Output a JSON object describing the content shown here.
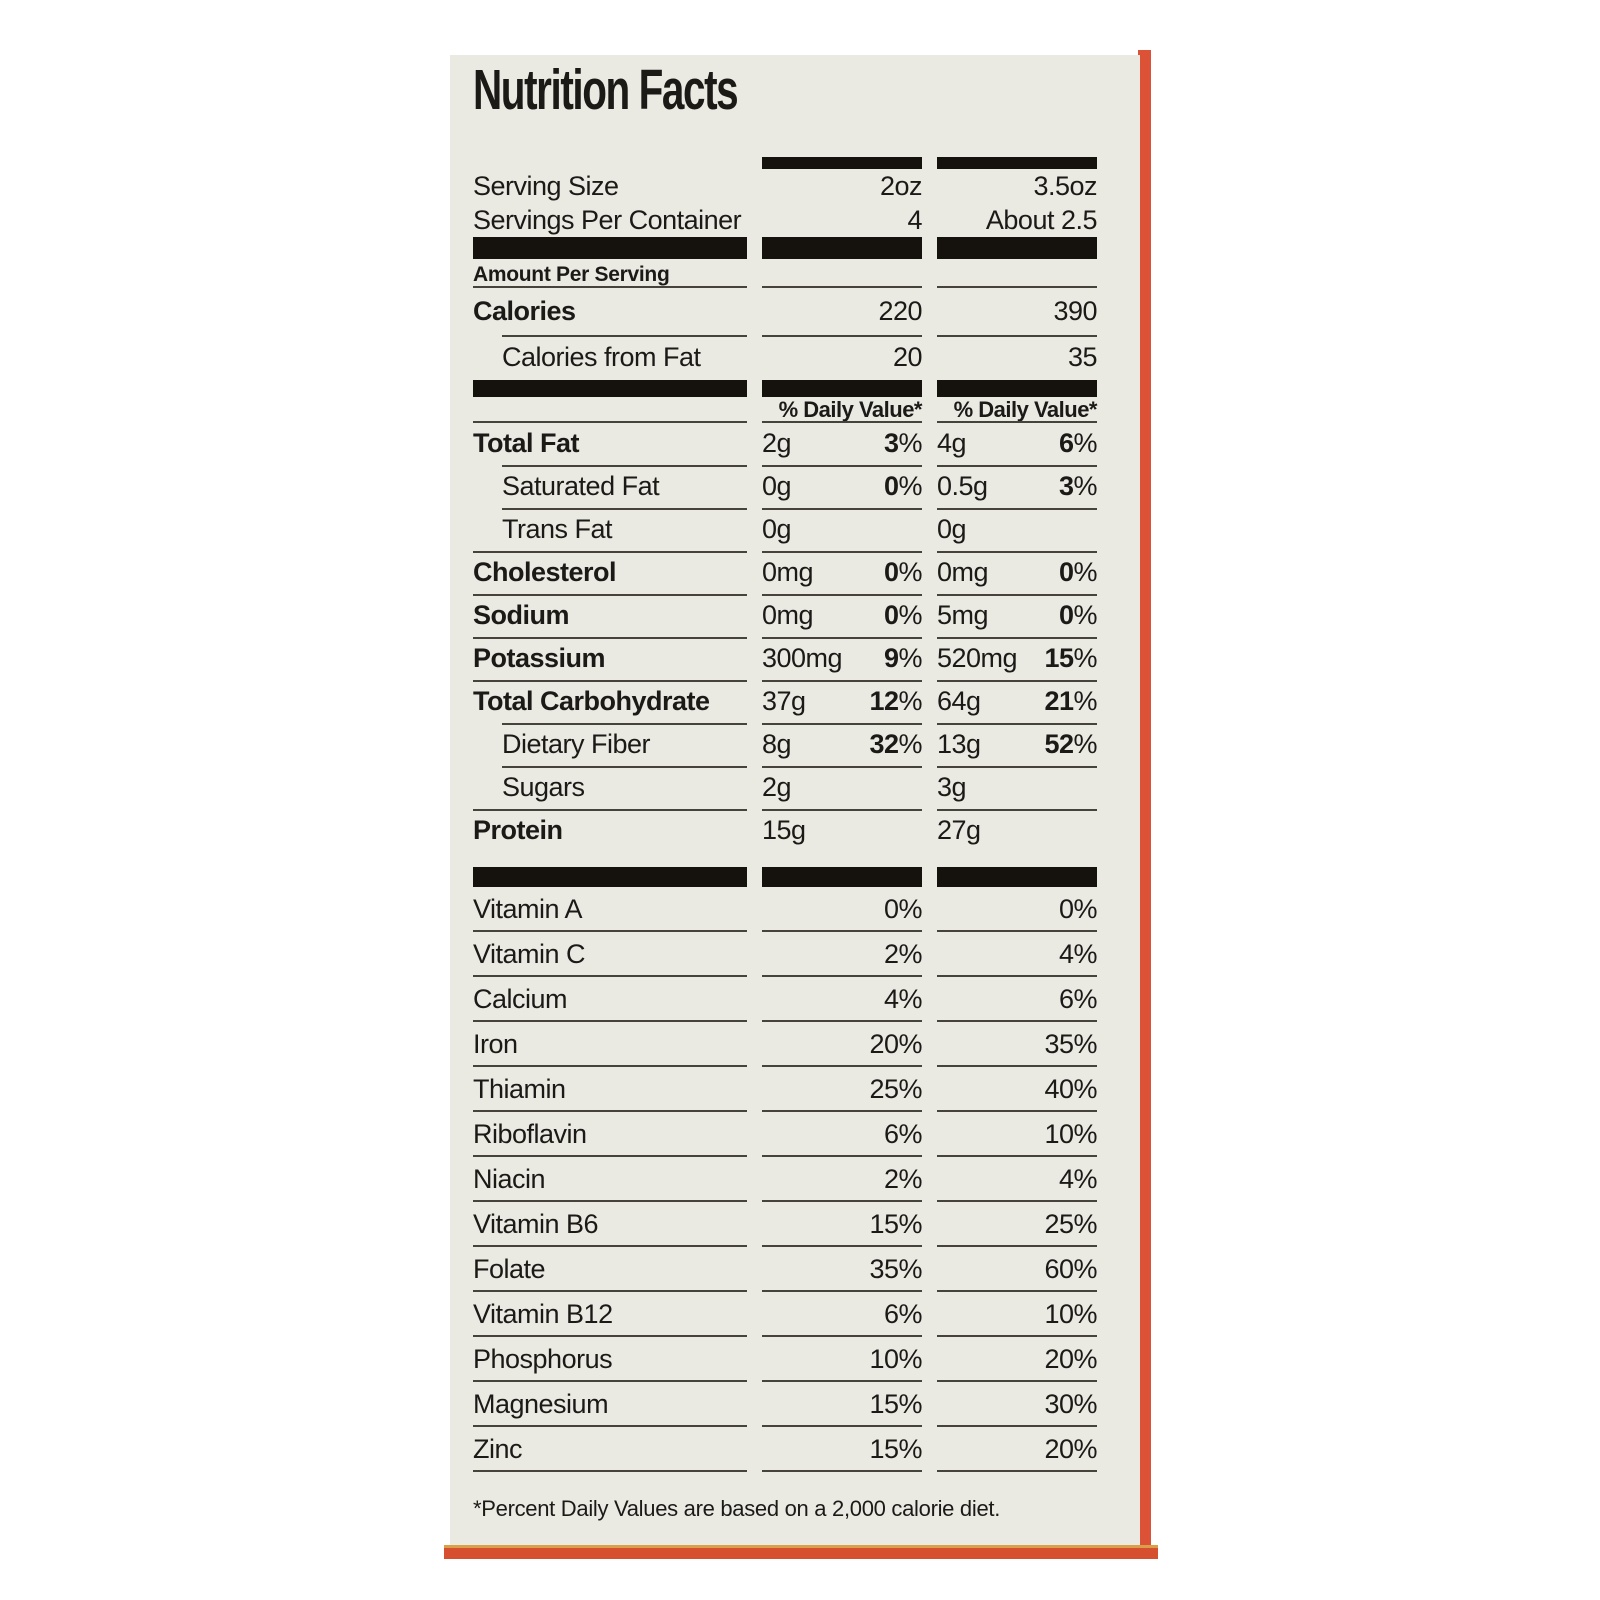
{
  "title": "Nutrition Facts",
  "column_headers": {
    "col1": "2oz",
    "col2": "3.5oz"
  },
  "serving_rows": [
    {
      "label": "Serving Size",
      "v1": "2oz",
      "v2": "3.5oz"
    },
    {
      "label": "Servings Per Container",
      "v1": "4",
      "v2": "About 2.5"
    }
  ],
  "amount_per_serving_label": "Amount Per Serving",
  "calorie_rows": [
    {
      "label": "Calories",
      "bold": true,
      "indent": false,
      "v1": "220",
      "v2": "390"
    },
    {
      "label": "Calories from Fat",
      "bold": false,
      "indent": true,
      "v1": "20",
      "v2": "35"
    }
  ],
  "daily_value_header": "% Daily Value*",
  "nutrient_rows": [
    {
      "label": "Total Fat",
      "bold": true,
      "indent": false,
      "a1": "2g",
      "p1": "3%",
      "a2": "4g",
      "p2": "6%"
    },
    {
      "label": "Saturated Fat",
      "bold": false,
      "indent": true,
      "a1": "0g",
      "p1": "0%",
      "a2": "0.5g",
      "p2": "3%"
    },
    {
      "label": "Trans Fat",
      "bold": false,
      "indent": true,
      "a1": "0g",
      "p1": "",
      "a2": "0g",
      "p2": ""
    },
    {
      "label": "Cholesterol",
      "bold": true,
      "indent": false,
      "a1": "0mg",
      "p1": "0%",
      "a2": "0mg",
      "p2": "0%"
    },
    {
      "label": "Sodium",
      "bold": true,
      "indent": false,
      "a1": "0mg",
      "p1": "0%",
      "a2": "5mg",
      "p2": "0%"
    },
    {
      "label": "Potassium",
      "bold": true,
      "indent": false,
      "a1": "300mg",
      "p1": "9%",
      "a2": "520mg",
      "p2": "15%"
    },
    {
      "label": "Total Carbohydrate",
      "bold": true,
      "indent": false,
      "a1": "37g",
      "p1": "12%",
      "a2": "64g",
      "p2": "21%"
    },
    {
      "label": "Dietary Fiber",
      "bold": false,
      "indent": true,
      "a1": "8g",
      "p1": "32%",
      "a2": "13g",
      "p2": "52%"
    },
    {
      "label": "Sugars",
      "bold": false,
      "indent": true,
      "a1": "2g",
      "p1": "",
      "a2": "3g",
      "p2": ""
    },
    {
      "label": "Protein",
      "bold": true,
      "indent": false,
      "a1": "15g",
      "p1": "",
      "a2": "27g",
      "p2": ""
    }
  ],
  "vitamin_rows": [
    {
      "label": "Vitamin A",
      "p1": "0%",
      "p2": "0%"
    },
    {
      "label": "Vitamin C",
      "p1": "2%",
      "p2": "4%"
    },
    {
      "label": "Calcium",
      "p1": "4%",
      "p2": "6%"
    },
    {
      "label": "Iron",
      "p1": "20%",
      "p2": "35%"
    },
    {
      "label": "Thiamin",
      "p1": "25%",
      "p2": "40%"
    },
    {
      "label": "Riboflavin",
      "p1": "6%",
      "p2": "10%"
    },
    {
      "label": "Niacin",
      "p1": "2%",
      "p2": "4%"
    },
    {
      "label": "Vitamin B6",
      "p1": "15%",
      "p2": "25%"
    },
    {
      "label": "Folate",
      "p1": "35%",
      "p2": "60%"
    },
    {
      "label": "Vitamin B12",
      "p1": "6%",
      "p2": "10%"
    },
    {
      "label": "Phosphorus",
      "p1": "10%",
      "p2": "20%"
    },
    {
      "label": "Magnesium",
      "p1": "15%",
      "p2": "30%"
    },
    {
      "label": "Zinc",
      "p1": "15%",
      "p2": "20%"
    }
  ],
  "footnote": "*Percent Daily Values are based on a 2,000 calorie diet.",
  "colors": {
    "panel_bg": "#eae9e2",
    "accent_orange": "#dc5237",
    "bottom_bar_orange": "#d6502f",
    "bottom_bar_gold": "#d9a049",
    "bar_black": "#15120d",
    "rule_gray": "#45433c"
  }
}
